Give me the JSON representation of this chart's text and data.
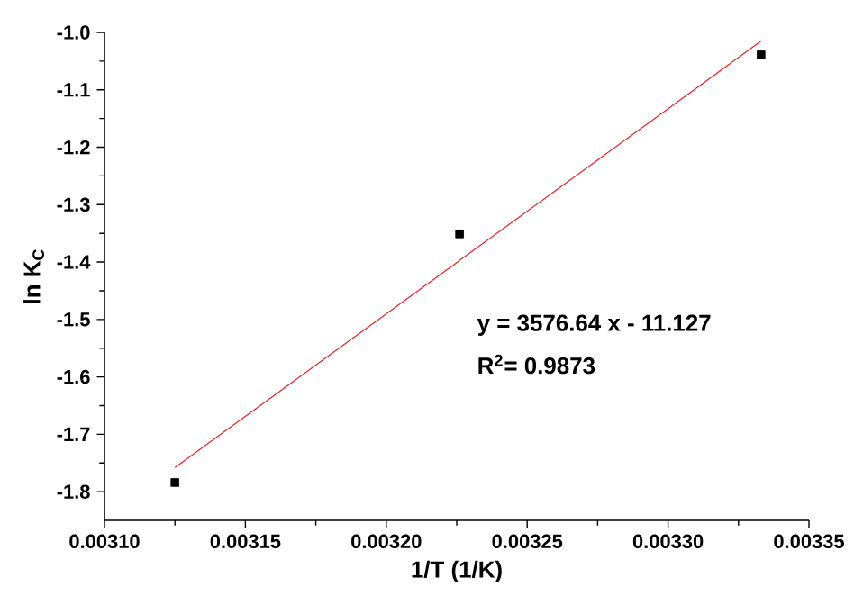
{
  "chart_data": {
    "type": "scatter",
    "xlabel": "1/T (1/K)",
    "ylabel": "ln K$_{C}$",
    "series": [
      {
        "color": "#000000",
        "marker": "square",
        "x": [
          0.003125,
          0.003226,
          0.003333
        ],
        "values": [
          -1.784,
          -1.351,
          -1.039
        ]
      },
      {
        "type": "line",
        "color": "#e8202a",
        "marker": "none",
        "line_style": "solid",
        "x": [
          0.003125,
          0.003333
        ],
        "values": [
          -1.758,
          -1.015
        ]
      }
    ],
    "xlim": [
      0.0031,
      0.00335
    ],
    "ylim": [
      -1.85,
      -1.0
    ],
    "xticks": [
      {
        "value": 0.0031,
        "label": "0.00310"
      },
      {
        "value": 0.00315,
        "label": "0.00315"
      },
      {
        "value": 0.0032,
        "label": "0.00320"
      },
      {
        "value": 0.00325,
        "label": "0.00325"
      },
      {
        "value": 0.0033,
        "label": "0.00330"
      },
      {
        "value": 0.00335,
        "label": "0.00335"
      }
    ],
    "yticks": [
      {
        "value": -1.8,
        "label": "-1.8"
      },
      {
        "value": -1.7,
        "label": "-1.7"
      },
      {
        "value": -1.6,
        "label": "-1.6"
      },
      {
        "value": -1.5,
        "label": "-1.5"
      },
      {
        "value": -1.4,
        "label": "-1.4"
      },
      {
        "value": -1.3,
        "label": "-1.3"
      },
      {
        "value": -1.2,
        "label": "-1.2"
      },
      {
        "value": -1.1,
        "label": "-1.1"
      },
      {
        "value": -1.0,
        "label": "-1.0"
      }
    ],
    "annotations": [
      "y = 3576.64 x - 11.127",
      "R$^{2}$= 0.9873"
    ],
    "grid": false
  }
}
